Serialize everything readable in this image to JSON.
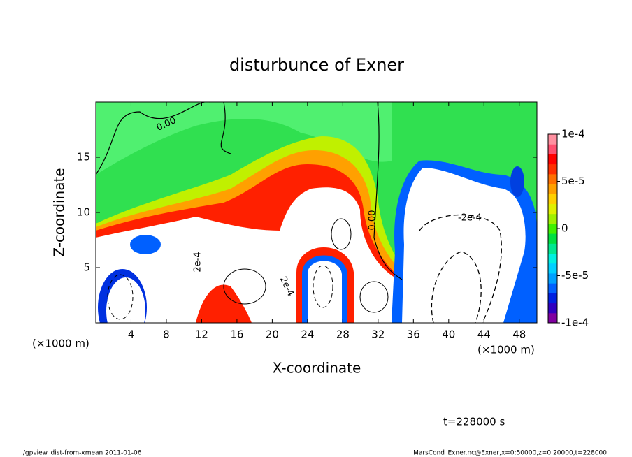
{
  "chart_data": {
    "type": "contour",
    "title": "disturbunce of Exner",
    "x_label": "X-coordinate",
    "y_label": "Z-coordinate",
    "x_unit_label": "(×1000 m)",
    "y_unit_label": "(×1000 m)",
    "time_label": "t=228000 s",
    "footer_left": "./gpview_dist-from-xmean  2011-01-06",
    "footer_right": "MarsCond_Exner.nc@Exner,x=0:50000,z=0:20000,t=228000",
    "xlim": [
      0,
      50
    ],
    "xticks": [
      4,
      8,
      12,
      16,
      20,
      24,
      28,
      32,
      36,
      40,
      44,
      48
    ],
    "ylim": [
      0,
      20
    ],
    "yticks": [
      5,
      10,
      15
    ],
    "colorbar_lim": [
      -0.0001,
      0.0001
    ],
    "colorbar_ticks": [
      {
        "value": 0.0001,
        "label": "1e-4"
      },
      {
        "value": 5e-05,
        "label": "5e-5"
      },
      0,
      {
        "value": -5e-05,
        "label": "-5e-5"
      },
      {
        "value": -0.0001,
        "label": "-1e-4"
      }
    ],
    "colormap": [
      "#8000a0",
      "#3000c0",
      "#0020e0",
      "#0060ff",
      "#00a0ff",
      "#00d0ff",
      "#00f0e0",
      "#00e890",
      "#00e040",
      "#40f000",
      "#a0f000",
      "#e0f000",
      "#ffd000",
      "#ffa000",
      "#ff7000",
      "#ff3000",
      "#ff0000",
      "#ff5070",
      "#ff90a0"
    ],
    "contour_labels": [
      "0.00",
      "0.00",
      "-2e-4",
      "2e-4",
      "2e-4"
    ]
  }
}
